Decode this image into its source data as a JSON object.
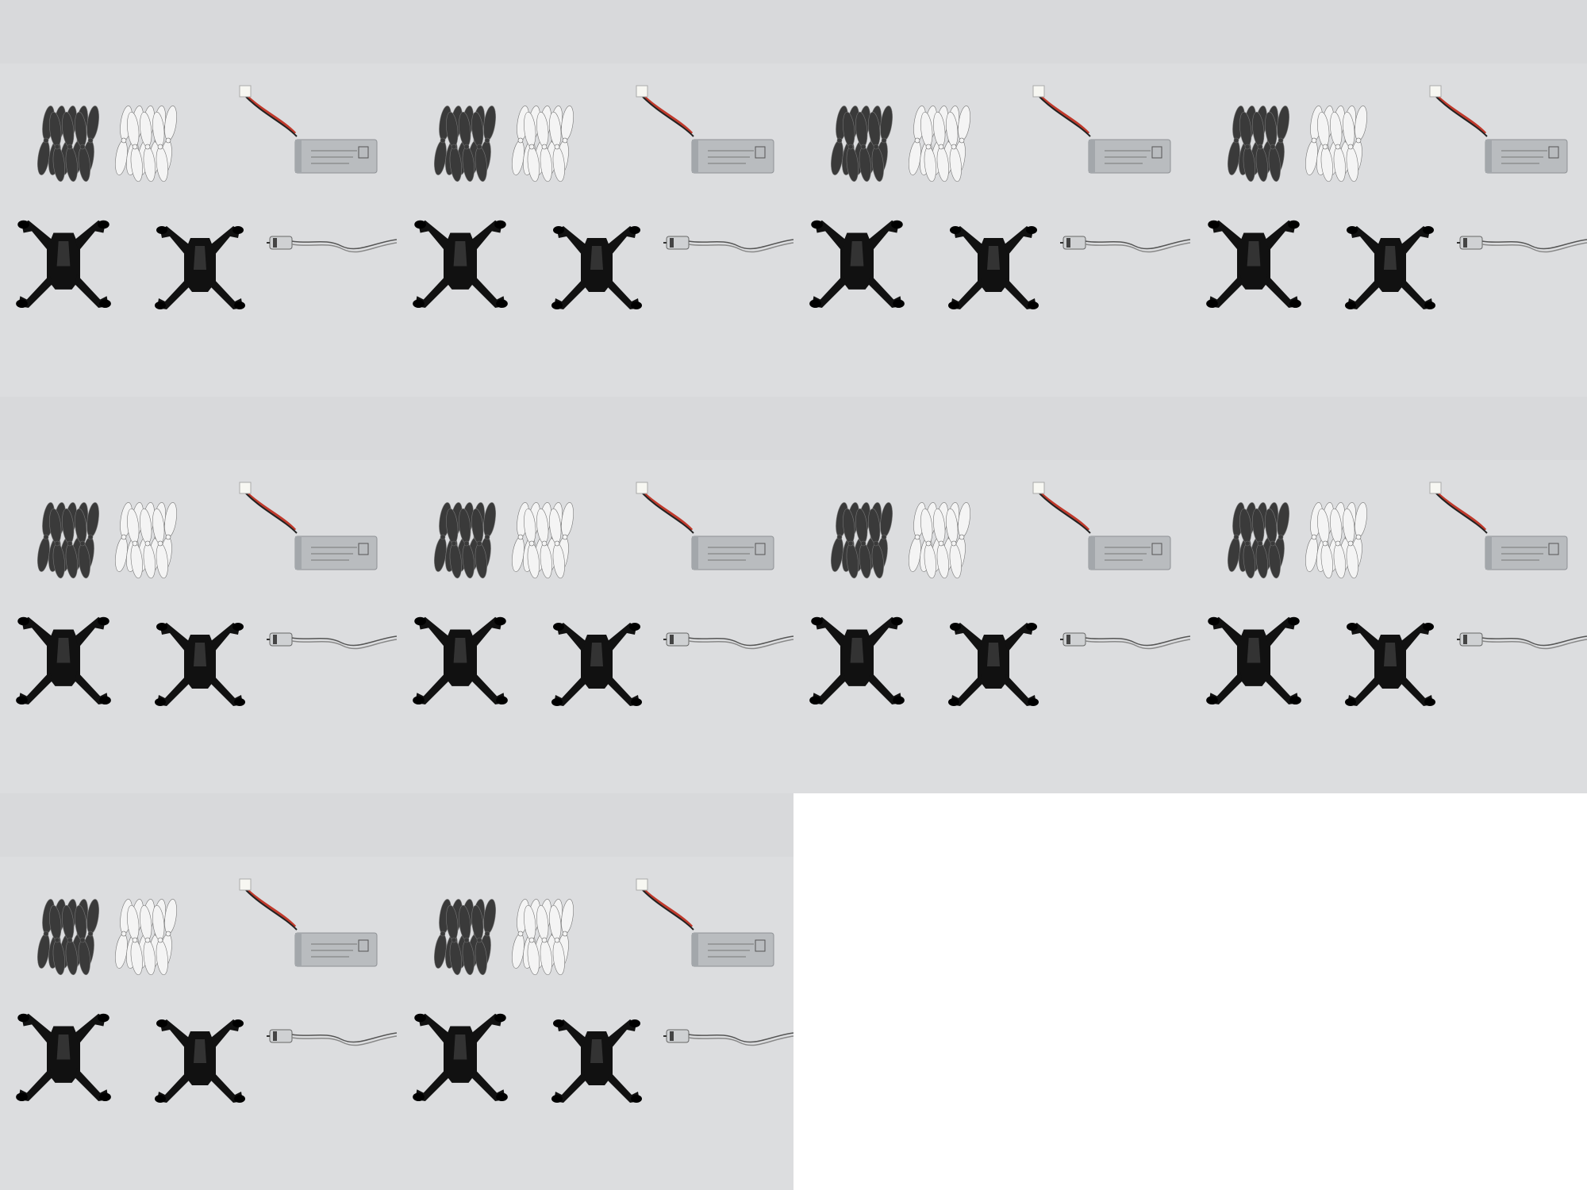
{
  "image": {
    "description_free": true,
    "layout": "grid",
    "columns": 4,
    "tile_count": 10,
    "background_color": "#d8d9db",
    "page_color": "#ffffff"
  },
  "tile_contents": {
    "items": [
      "black-propellers-icon",
      "white-propellers-icon",
      "lipo-battery-icon",
      "drone-top-shell-icon",
      "drone-bottom-shell-icon",
      "brushed-motor-icon"
    ],
    "colors": {
      "black_part": "#111111",
      "dark_propeller": "#3a3a3a",
      "white_propeller": "#f4f4f4",
      "battery_silver": "#b9bcbf",
      "wire_red": "#c0392b"
    }
  }
}
